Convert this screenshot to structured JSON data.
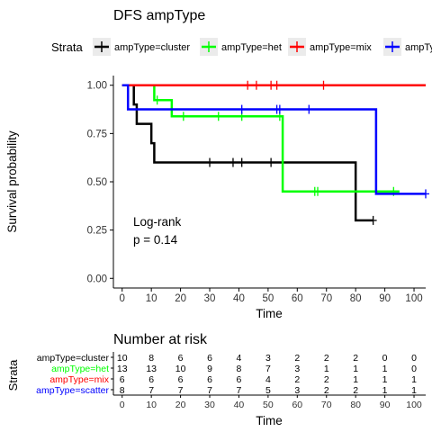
{
  "chart_data": [
    {
      "type": "line",
      "title": "DFS ampType",
      "xlabel": "Time",
      "ylabel": "Survival probability",
      "xlim": [
        -3,
        104
      ],
      "ylim": [
        -0.05,
        1.05
      ],
      "x_ticks": [
        0,
        10,
        20,
        30,
        40,
        50,
        60,
        70,
        80,
        90,
        100
      ],
      "y_ticks": [
        0.0,
        0.25,
        0.5,
        0.75,
        1.0
      ],
      "y_tick_labels": [
        "0.00",
        "0.25",
        "0.50",
        "0.75",
        "1.00"
      ],
      "grid": false,
      "legend": {
        "title": "Strata",
        "placement": "top",
        "entries": [
          "ampType=cluster",
          "ampType=het",
          "ampType=mix",
          "ampType=scatter"
        ]
      },
      "annotation": [
        "Log-rank",
        "p = 0.14"
      ],
      "series": [
        {
          "name": "ampType=cluster",
          "color": "#000000",
          "steps": [
            [
              0,
              1.0
            ],
            [
              4,
              0.9
            ],
            [
              5,
              0.8
            ],
            [
              10,
              0.7
            ],
            [
              11,
              0.6
            ],
            [
              80,
              0.3
            ],
            [
              86,
              0.3
            ]
          ],
          "censored": [
            [
              30,
              0.6
            ],
            [
              38,
              0.6
            ],
            [
              41,
              0.6
            ],
            [
              51,
              0.6
            ],
            [
              86,
              0.3
            ]
          ]
        },
        {
          "name": "ampType=het",
          "color": "#00ff00",
          "steps": [
            [
              0,
              1.0
            ],
            [
              11,
              0.923
            ],
            [
              17,
              0.839
            ],
            [
              54,
              0.839
            ],
            [
              55,
              0.45
            ],
            [
              95,
              0.45
            ]
          ],
          "censored": [
            [
              12,
              0.923
            ],
            [
              21,
              0.839
            ],
            [
              33,
              0.839
            ],
            [
              41,
              0.839
            ],
            [
              54,
              0.839
            ],
            [
              66,
              0.45
            ],
            [
              67,
              0.45
            ],
            [
              93,
              0.45
            ]
          ]
        },
        {
          "name": "ampType=mix",
          "color": "#ff0000",
          "steps": [
            [
              0,
              1.0
            ],
            [
              104,
              1.0
            ]
          ],
          "censored": [
            [
              43,
              1.0
            ],
            [
              46,
              1.0
            ],
            [
              51,
              1.0
            ],
            [
              53,
              1.0
            ],
            [
              69,
              1.0
            ]
          ]
        },
        {
          "name": "ampType=scatter",
          "color": "#0000ff",
          "steps": [
            [
              0,
              1.0
            ],
            [
              2,
              0.875
            ],
            [
              87,
              0.875
            ],
            [
              87,
              0.4375
            ],
            [
              104,
              0.4375
            ]
          ],
          "censored": [
            [
              41,
              0.875
            ],
            [
              53,
              0.875
            ],
            [
              54,
              0.875
            ],
            [
              64,
              0.875
            ],
            [
              104,
              0.4375
            ]
          ]
        }
      ]
    },
    {
      "type": "table",
      "title": "Number at risk",
      "ylabel": "Strata",
      "xlabel": "Time",
      "columns": [
        "0",
        "10",
        "20",
        "30",
        "40",
        "50",
        "60",
        "70",
        "80",
        "90",
        "100"
      ],
      "rows": [
        {
          "label": "ampType=cluster",
          "color": "#000000",
          "values": [
            "10",
            "8",
            "6",
            "6",
            "4",
            "3",
            "2",
            "2",
            "2",
            "0",
            "0"
          ]
        },
        {
          "label": "ampType=het",
          "color": "#00ff00",
          "values": [
            "13",
            "13",
            "10",
            "9",
            "8",
            "7",
            "3",
            "1",
            "1",
            "1",
            "0"
          ]
        },
        {
          "label": "ampType=mix",
          "color": "#ff0000",
          "values": [
            "6",
            "6",
            "6",
            "6",
            "6",
            "4",
            "2",
            "2",
            "1",
            "1",
            "1"
          ]
        },
        {
          "label": "ampType=scatter",
          "color": "#0000ff",
          "values": [
            "8",
            "7",
            "7",
            "7",
            "7",
            "5",
            "3",
            "2",
            "2",
            "1",
            "1"
          ]
        }
      ]
    }
  ]
}
